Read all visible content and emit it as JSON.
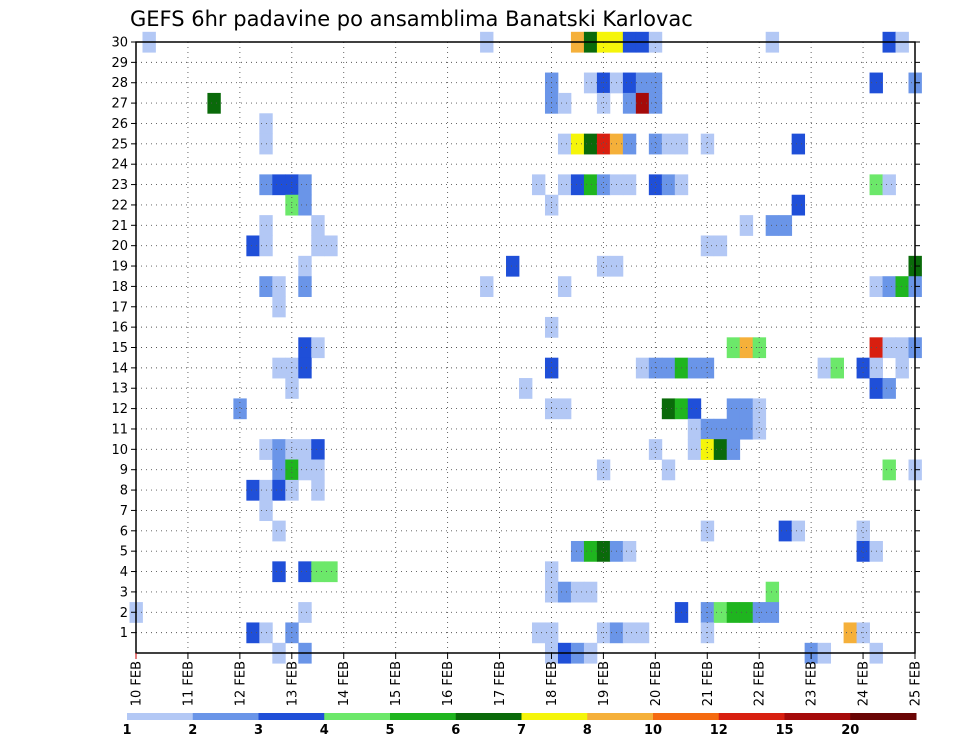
{
  "chart_data": {
    "type": "heatmap",
    "title": "GEFS 6hr padavine po ansamblima Banatski Karlovac",
    "xlabel": "",
    "ylabel": "",
    "x_ticks": [
      "10 FEB",
      "11 FEB",
      "12 FEB",
      "13 FEB",
      "14 FEB",
      "15 FEB",
      "16 FEB",
      "17 FEB",
      "18 FEB",
      "19 FEB",
      "20 FEB",
      "21 FEB",
      "22 FEB",
      "23 FEB",
      "24 FEB",
      "25 FEB"
    ],
    "y_ticks": [
      "1",
      "2",
      "3",
      "4",
      "5",
      "6",
      "7",
      "8",
      "9",
      "10",
      "11",
      "12",
      "13",
      "14",
      "15",
      "16",
      "17",
      "18",
      "19",
      "20",
      "21",
      "22",
      "23",
      "24",
      "25",
      "26",
      "27",
      "28",
      "29",
      "30"
    ],
    "x_unit_per_tick": 4,
    "x_range": [
      0,
      60
    ],
    "y_range": [
      0,
      30
    ],
    "grid": true,
    "colorbar": {
      "labels": [
        "1",
        "2",
        "3",
        "4",
        "5",
        "6",
        "7",
        "8",
        "10",
        "12",
        "15",
        "20"
      ],
      "colors": [
        "#b3c8f5",
        "#6a95e8",
        "#1f4fd8",
        "#6ce86a",
        "#1fb51f",
        "#0a6a0a",
        "#f5f50a",
        "#f5b03a",
        "#f56a10",
        "#d81f10",
        "#a50a0a",
        "#6a0505"
      ]
    },
    "cells": [
      [
        1,
        30,
        0
      ],
      [
        27,
        30,
        0
      ],
      [
        34,
        30,
        7
      ],
      [
        35,
        30,
        5
      ],
      [
        36,
        30,
        6
      ],
      [
        37,
        30,
        6
      ],
      [
        38,
        30,
        2
      ],
      [
        39,
        30,
        2
      ],
      [
        40,
        30,
        0
      ],
      [
        49,
        30,
        0
      ],
      [
        58,
        30,
        2
      ],
      [
        59,
        30,
        0
      ],
      [
        32,
        28,
        1
      ],
      [
        35,
        28,
        0
      ],
      [
        36,
        28,
        2
      ],
      [
        37,
        28,
        0
      ],
      [
        38,
        28,
        2
      ],
      [
        39,
        28,
        1
      ],
      [
        40,
        28,
        1
      ],
      [
        57,
        28,
        2
      ],
      [
        60,
        28,
        1
      ],
      [
        6,
        27,
        5
      ],
      [
        32,
        27,
        1
      ],
      [
        33,
        27,
        0
      ],
      [
        36,
        27,
        0
      ],
      [
        38,
        27,
        1
      ],
      [
        39,
        27,
        10
      ],
      [
        40,
        27,
        1
      ],
      [
        10,
        26,
        0
      ],
      [
        10,
        25,
        0
      ],
      [
        33,
        25,
        0
      ],
      [
        34,
        25,
        6
      ],
      [
        35,
        25,
        5
      ],
      [
        36,
        25,
        9
      ],
      [
        37,
        25,
        7
      ],
      [
        38,
        25,
        1
      ],
      [
        40,
        25,
        1
      ],
      [
        41,
        25,
        0
      ],
      [
        42,
        25,
        0
      ],
      [
        44,
        25,
        0
      ],
      [
        51,
        25,
        2
      ],
      [
        10,
        23,
        1
      ],
      [
        11,
        23,
        2
      ],
      [
        12,
        23,
        2
      ],
      [
        13,
        23,
        1
      ],
      [
        31,
        23,
        0
      ],
      [
        33,
        23,
        0
      ],
      [
        34,
        23,
        2
      ],
      [
        35,
        23,
        4
      ],
      [
        36,
        23,
        1
      ],
      [
        37,
        23,
        0
      ],
      [
        38,
        23,
        0
      ],
      [
        40,
        23,
        2
      ],
      [
        41,
        23,
        1
      ],
      [
        42,
        23,
        0
      ],
      [
        57,
        23,
        3
      ],
      [
        58,
        23,
        0
      ],
      [
        12,
        22,
        3
      ],
      [
        13,
        22,
        1
      ],
      [
        32,
        22,
        0
      ],
      [
        51,
        22,
        2
      ],
      [
        10,
        21,
        0
      ],
      [
        14,
        21,
        0
      ],
      [
        47,
        21,
        0
      ],
      [
        49,
        21,
        1
      ],
      [
        50,
        21,
        1
      ],
      [
        9,
        20,
        2
      ],
      [
        10,
        20,
        0
      ],
      [
        14,
        20,
        0
      ],
      [
        15,
        20,
        0
      ],
      [
        44,
        20,
        0
      ],
      [
        45,
        20,
        0
      ],
      [
        13,
        19,
        0
      ],
      [
        29,
        19,
        2
      ],
      [
        36,
        19,
        0
      ],
      [
        37,
        19,
        0
      ],
      [
        60,
        19,
        5
      ],
      [
        10,
        18,
        1
      ],
      [
        11,
        18,
        0
      ],
      [
        13,
        18,
        1
      ],
      [
        27,
        18,
        0
      ],
      [
        33,
        18,
        0
      ],
      [
        57,
        18,
        0
      ],
      [
        58,
        18,
        1
      ],
      [
        59,
        18,
        4
      ],
      [
        60,
        18,
        1
      ],
      [
        11,
        17,
        0
      ],
      [
        32,
        16,
        0
      ],
      [
        13,
        15,
        2
      ],
      [
        14,
        15,
        0
      ],
      [
        46,
        15,
        3
      ],
      [
        47,
        15,
        7
      ],
      [
        48,
        15,
        3
      ],
      [
        57,
        15,
        9
      ],
      [
        58,
        15,
        0
      ],
      [
        59,
        15,
        0
      ],
      [
        60,
        15,
        1
      ],
      [
        11,
        14,
        0
      ],
      [
        12,
        14,
        0
      ],
      [
        13,
        14,
        2
      ],
      [
        32,
        14,
        2
      ],
      [
        39,
        14,
        0
      ],
      [
        40,
        14,
        1
      ],
      [
        41,
        14,
        1
      ],
      [
        42,
        14,
        4
      ],
      [
        43,
        14,
        1
      ],
      [
        44,
        14,
        1
      ],
      [
        53,
        14,
        0
      ],
      [
        54,
        14,
        3
      ],
      [
        56,
        14,
        2
      ],
      [
        57,
        14,
        0
      ],
      [
        59,
        14,
        0
      ],
      [
        12,
        13,
        0
      ],
      [
        30,
        13,
        0
      ],
      [
        57,
        13,
        2
      ],
      [
        58,
        13,
        1
      ],
      [
        8,
        12,
        1
      ],
      [
        32,
        12,
        0
      ],
      [
        33,
        12,
        0
      ],
      [
        41,
        12,
        5
      ],
      [
        42,
        12,
        4
      ],
      [
        43,
        12,
        2
      ],
      [
        46,
        12,
        1
      ],
      [
        47,
        12,
        1
      ],
      [
        48,
        12,
        0
      ],
      [
        43,
        11,
        0
      ],
      [
        44,
        11,
        1
      ],
      [
        45,
        11,
        1
      ],
      [
        46,
        11,
        1
      ],
      [
        47,
        11,
        1
      ],
      [
        48,
        11,
        0
      ],
      [
        10,
        10,
        0
      ],
      [
        11,
        10,
        1
      ],
      [
        12,
        10,
        0
      ],
      [
        13,
        10,
        0
      ],
      [
        14,
        10,
        2
      ],
      [
        40,
        10,
        0
      ],
      [
        43,
        10,
        0
      ],
      [
        44,
        10,
        6
      ],
      [
        45,
        10,
        5
      ],
      [
        46,
        10,
        1
      ],
      [
        11,
        9,
        1
      ],
      [
        12,
        9,
        4
      ],
      [
        13,
        9,
        0
      ],
      [
        14,
        9,
        0
      ],
      [
        36,
        9,
        0
      ],
      [
        41,
        9,
        0
      ],
      [
        58,
        9,
        3
      ],
      [
        60,
        9,
        0
      ],
      [
        9,
        8,
        2
      ],
      [
        10,
        8,
        0
      ],
      [
        11,
        8,
        2
      ],
      [
        12,
        8,
        0
      ],
      [
        14,
        8,
        0
      ],
      [
        10,
        7,
        0
      ],
      [
        11,
        6,
        0
      ],
      [
        44,
        6,
        0
      ],
      [
        50,
        6,
        2
      ],
      [
        51,
        6,
        0
      ],
      [
        56,
        6,
        0
      ],
      [
        34,
        5,
        1
      ],
      [
        35,
        5,
        4
      ],
      [
        36,
        5,
        5
      ],
      [
        37,
        5,
        1
      ],
      [
        38,
        5,
        0
      ],
      [
        56,
        5,
        2
      ],
      [
        57,
        5,
        0
      ],
      [
        11,
        4,
        2
      ],
      [
        13,
        4,
        2
      ],
      [
        14,
        4,
        3
      ],
      [
        15,
        4,
        3
      ],
      [
        32,
        4,
        0
      ],
      [
        32,
        3,
        0
      ],
      [
        33,
        3,
        1
      ],
      [
        34,
        3,
        0
      ],
      [
        35,
        3,
        0
      ],
      [
        49,
        3,
        3
      ],
      [
        0,
        2,
        0
      ],
      [
        13,
        2,
        0
      ],
      [
        42,
        2,
        2
      ],
      [
        44,
        2,
        1
      ],
      [
        45,
        2,
        3
      ],
      [
        46,
        2,
        4
      ],
      [
        47,
        2,
        4
      ],
      [
        48,
        2,
        1
      ],
      [
        49,
        2,
        1
      ],
      [
        9,
        1,
        2
      ],
      [
        10,
        1,
        0
      ],
      [
        12,
        1,
        1
      ],
      [
        31,
        1,
        0
      ],
      [
        32,
        1,
        0
      ],
      [
        36,
        1,
        0
      ],
      [
        37,
        1,
        1
      ],
      [
        38,
        1,
        0
      ],
      [
        39,
        1,
        0
      ],
      [
        44,
        1,
        0
      ],
      [
        55,
        1,
        7
      ],
      [
        56,
        1,
        0
      ],
      [
        11,
        0,
        0
      ],
      [
        13,
        0,
        1
      ],
      [
        32,
        0,
        0
      ],
      [
        33,
        0,
        2
      ],
      [
        34,
        0,
        1
      ],
      [
        35,
        0,
        0
      ],
      [
        52,
        0,
        1
      ],
      [
        53,
        0,
        0
      ],
      [
        57,
        0,
        0
      ]
    ]
  }
}
